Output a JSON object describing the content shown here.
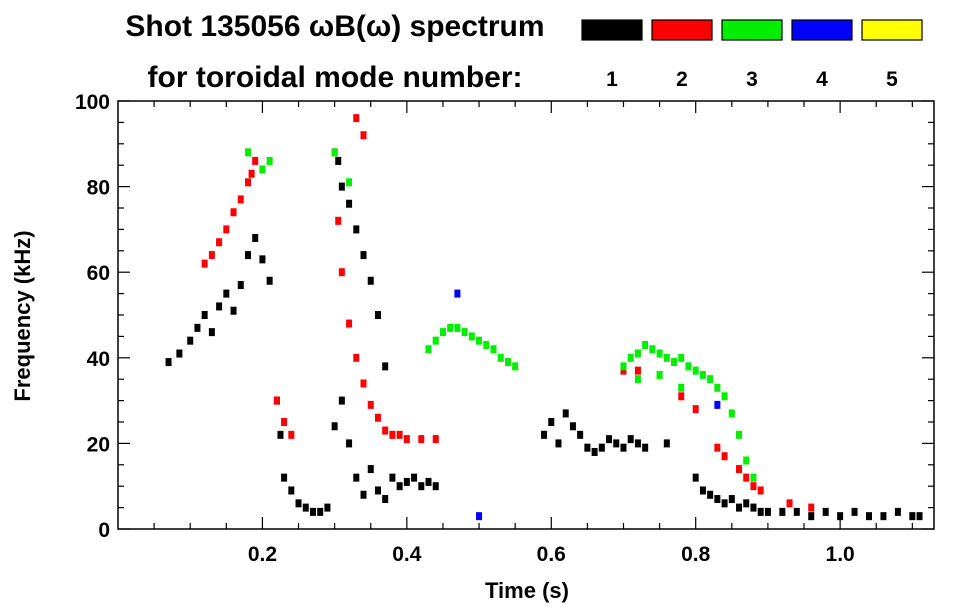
{
  "chart_data": {
    "type": "scatter",
    "title": "Shot 135056 ωB(ω) spectrum",
    "subtitle": "for toroidal mode number:",
    "xlabel": "Time (s)",
    "ylabel": "Frequency (kHz)",
    "xlim": [
      0.0,
      1.13
    ],
    "ylim": [
      0,
      100
    ],
    "x_ticks": [
      {
        "value": 0.2,
        "label": "0.2"
      },
      {
        "value": 0.4,
        "label": "0.4"
      },
      {
        "value": 0.6,
        "label": "0.6"
      },
      {
        "value": 0.8,
        "label": "0.8"
      },
      {
        "value": 1.0,
        "label": "1.0"
      }
    ],
    "y_ticks": [
      {
        "value": 0,
        "label": "0"
      },
      {
        "value": 20,
        "label": "20"
      },
      {
        "value": 40,
        "label": "40"
      },
      {
        "value": 60,
        "label": "60"
      },
      {
        "value": 80,
        "label": "80"
      },
      {
        "value": 100,
        "label": "100"
      }
    ],
    "grid": false,
    "legend_position": "top-right",
    "legend": [
      {
        "label": "1",
        "color": "#000000"
      },
      {
        "label": "2",
        "color": "#ff0000"
      },
      {
        "label": "3",
        "color": "#00ee00"
      },
      {
        "label": "4",
        "color": "#0000ff"
      },
      {
        "label": "5",
        "color": "#ffff00"
      }
    ],
    "series": [
      {
        "mode": "1",
        "color": "#000000",
        "points": [
          [
            0.07,
            39
          ],
          [
            0.085,
            41
          ],
          [
            0.1,
            44
          ],
          [
            0.11,
            47
          ],
          [
            0.12,
            50
          ],
          [
            0.13,
            46
          ],
          [
            0.14,
            52
          ],
          [
            0.15,
            55
          ],
          [
            0.16,
            51
          ],
          [
            0.17,
            57
          ],
          [
            0.18,
            64
          ],
          [
            0.19,
            68
          ],
          [
            0.2,
            63
          ],
          [
            0.21,
            58
          ],
          [
            0.22,
            30
          ],
          [
            0.225,
            22
          ],
          [
            0.23,
            12
          ],
          [
            0.24,
            9
          ],
          [
            0.25,
            6
          ],
          [
            0.26,
            5
          ],
          [
            0.27,
            4
          ],
          [
            0.28,
            4
          ],
          [
            0.29,
            5
          ],
          [
            0.3,
            24
          ],
          [
            0.305,
            86
          ],
          [
            0.31,
            80
          ],
          [
            0.32,
            76
          ],
          [
            0.33,
            70
          ],
          [
            0.34,
            64
          ],
          [
            0.35,
            58
          ],
          [
            0.36,
            50
          ],
          [
            0.37,
            38
          ],
          [
            0.38,
            12
          ],
          [
            0.39,
            10
          ],
          [
            0.4,
            11
          ],
          [
            0.41,
            12
          ],
          [
            0.42,
            10
          ],
          [
            0.43,
            11
          ],
          [
            0.44,
            10
          ],
          [
            0.31,
            30
          ],
          [
            0.32,
            20
          ],
          [
            0.33,
            12
          ],
          [
            0.34,
            8
          ],
          [
            0.35,
            14
          ],
          [
            0.36,
            9
          ],
          [
            0.37,
            7
          ],
          [
            0.59,
            22
          ],
          [
            0.6,
            25
          ],
          [
            0.61,
            20
          ],
          [
            0.62,
            27
          ],
          [
            0.63,
            24
          ],
          [
            0.64,
            22
          ],
          [
            0.65,
            19
          ],
          [
            0.66,
            18
          ],
          [
            0.67,
            19
          ],
          [
            0.68,
            21
          ],
          [
            0.69,
            20
          ],
          [
            0.7,
            19
          ],
          [
            0.71,
            21
          ],
          [
            0.72,
            20
          ],
          [
            0.73,
            19
          ],
          [
            0.76,
            20
          ],
          [
            0.8,
            12
          ],
          [
            0.81,
            9
          ],
          [
            0.82,
            8
          ],
          [
            0.83,
            7
          ],
          [
            0.84,
            6
          ],
          [
            0.85,
            7
          ],
          [
            0.86,
            5
          ],
          [
            0.87,
            6
          ],
          [
            0.88,
            5
          ],
          [
            0.89,
            4
          ],
          [
            0.9,
            4
          ],
          [
            0.92,
            4
          ],
          [
            0.94,
            4
          ],
          [
            0.96,
            3
          ],
          [
            0.98,
            4
          ],
          [
            1.0,
            3
          ],
          [
            1.02,
            4
          ],
          [
            1.04,
            3
          ],
          [
            1.06,
            3
          ],
          [
            1.08,
            4
          ],
          [
            1.1,
            3
          ],
          [
            1.11,
            3
          ]
        ]
      },
      {
        "mode": "2",
        "color": "#ff0000",
        "points": [
          [
            0.12,
            62
          ],
          [
            0.13,
            64
          ],
          [
            0.14,
            67
          ],
          [
            0.15,
            70
          ],
          [
            0.16,
            74
          ],
          [
            0.17,
            77
          ],
          [
            0.18,
            81
          ],
          [
            0.185,
            83
          ],
          [
            0.19,
            86
          ],
          [
            0.22,
            30
          ],
          [
            0.23,
            25
          ],
          [
            0.24,
            22
          ],
          [
            0.3,
            88
          ],
          [
            0.305,
            72
          ],
          [
            0.31,
            60
          ],
          [
            0.32,
            48
          ],
          [
            0.33,
            40
          ],
          [
            0.34,
            34
          ],
          [
            0.35,
            29
          ],
          [
            0.36,
            26
          ],
          [
            0.37,
            23
          ],
          [
            0.38,
            22
          ],
          [
            0.39,
            22
          ],
          [
            0.4,
            21
          ],
          [
            0.42,
            21
          ],
          [
            0.44,
            21
          ],
          [
            0.7,
            37
          ],
          [
            0.72,
            37
          ],
          [
            0.78,
            31
          ],
          [
            0.8,
            28
          ],
          [
            0.83,
            19
          ],
          [
            0.84,
            17
          ],
          [
            0.86,
            14
          ],
          [
            0.87,
            12
          ],
          [
            0.88,
            10
          ],
          [
            0.89,
            9
          ],
          [
            0.93,
            6
          ],
          [
            0.96,
            5
          ],
          [
            0.33,
            96
          ],
          [
            0.34,
            92
          ]
        ]
      },
      {
        "mode": "3",
        "color": "#00ee00",
        "points": [
          [
            0.18,
            88
          ],
          [
            0.2,
            84
          ],
          [
            0.21,
            86
          ],
          [
            0.3,
            88
          ],
          [
            0.32,
            81
          ],
          [
            0.43,
            42
          ],
          [
            0.44,
            44
          ],
          [
            0.45,
            46
          ],
          [
            0.46,
            47
          ],
          [
            0.47,
            47
          ],
          [
            0.48,
            46
          ],
          [
            0.49,
            45
          ],
          [
            0.5,
            44
          ],
          [
            0.51,
            43
          ],
          [
            0.52,
            42
          ],
          [
            0.53,
            40
          ],
          [
            0.54,
            39
          ],
          [
            0.55,
            38
          ],
          [
            0.7,
            38
          ],
          [
            0.71,
            40
          ],
          [
            0.72,
            41
          ],
          [
            0.73,
            43
          ],
          [
            0.74,
            42
          ],
          [
            0.75,
            41
          ],
          [
            0.76,
            40
          ],
          [
            0.77,
            39
          ],
          [
            0.78,
            40
          ],
          [
            0.79,
            38
          ],
          [
            0.8,
            37
          ],
          [
            0.81,
            36
          ],
          [
            0.82,
            35
          ],
          [
            0.83,
            33
          ],
          [
            0.84,
            31
          ],
          [
            0.85,
            27
          ],
          [
            0.86,
            22
          ],
          [
            0.87,
            16
          ],
          [
            0.88,
            12
          ],
          [
            0.75,
            36
          ],
          [
            0.72,
            35
          ],
          [
            0.78,
            33
          ]
        ]
      },
      {
        "mode": "4",
        "color": "#0000ff",
        "points": [
          [
            0.47,
            55
          ],
          [
            0.5,
            3
          ],
          [
            0.83,
            29
          ]
        ]
      },
      {
        "mode": "5",
        "color": "#ffff00",
        "points": []
      }
    ]
  }
}
